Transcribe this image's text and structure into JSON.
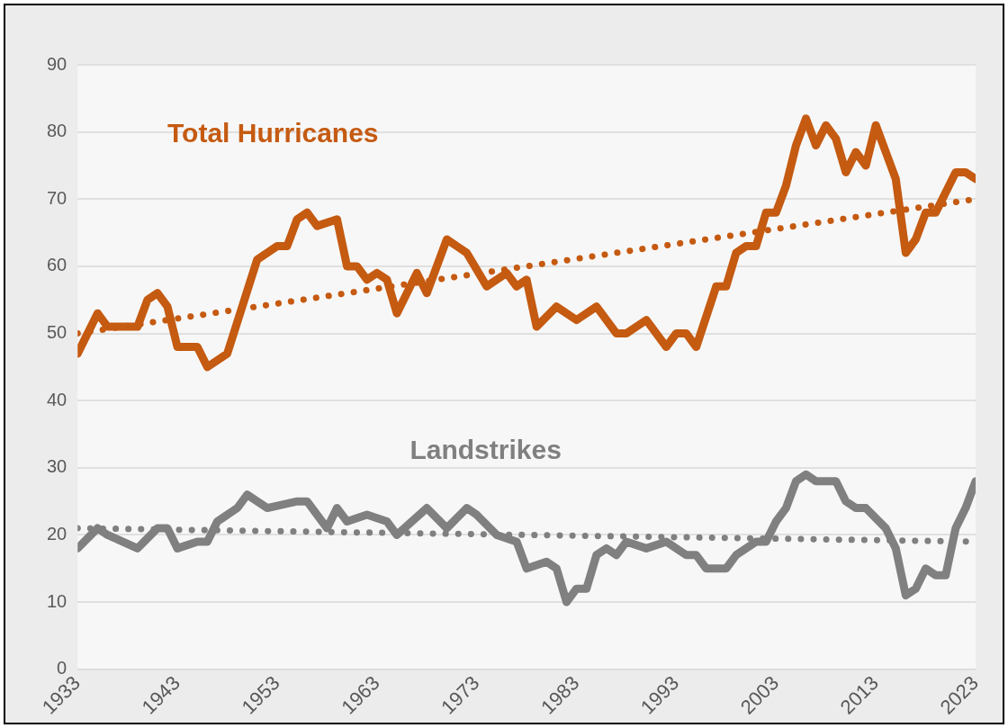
{
  "chart_data": {
    "type": "line",
    "xlim": [
      1933,
      2023
    ],
    "xticks": [
      1933,
      1943,
      1953,
      1963,
      1973,
      1983,
      1993,
      2003,
      2013,
      2023
    ],
    "ylim": [
      0,
      90
    ],
    "yticks": [
      0,
      10,
      20,
      30,
      40,
      50,
      60,
      70,
      80,
      90
    ],
    "grid": "y",
    "legend": false,
    "marker": "none",
    "line_style": "solid",
    "series": [
      {
        "name": "Total Hurricanes",
        "color": "#c55a11",
        "x": [
          1933,
          1935,
          1936,
          1939,
          1940,
          1941,
          1942,
          1943,
          1945,
          1946,
          1948,
          1951,
          1953,
          1954,
          1955,
          1956,
          1957,
          1959,
          1960,
          1961,
          1962,
          1963,
          1964,
          1965,
          1967,
          1968,
          1970,
          1972,
          1974,
          1976,
          1977,
          1978,
          1979,
          1981,
          1983,
          1985,
          1987,
          1988,
          1990,
          1992,
          1993,
          1994,
          1995,
          1997,
          1998,
          1999,
          2000,
          2001,
          2002,
          2003,
          2004,
          2005,
          2006,
          2007,
          2008,
          2009,
          2010,
          2011,
          2012,
          2013,
          2014,
          2015,
          2016,
          2017,
          2018,
          2019,
          2021,
          2022,
          2023
        ],
        "values": [
          47,
          53,
          51,
          51,
          55,
          56,
          54,
          48,
          48,
          45,
          47,
          61,
          63,
          63,
          67,
          68,
          66,
          67,
          60,
          60,
          58,
          59,
          58,
          53,
          59,
          56,
          64,
          62,
          57,
          59,
          57,
          58,
          51,
          54,
          52,
          54,
          50,
          50,
          52,
          48,
          50,
          50,
          48,
          57,
          57,
          62,
          63,
          63,
          68,
          68,
          72,
          78,
          82,
          78,
          81,
          79,
          74,
          77,
          75,
          81,
          77,
          73,
          62,
          64,
          68,
          68,
          74,
          74,
          73
        ]
      },
      {
        "name": "Landstrikes",
        "color": "#808080",
        "x": [
          1933,
          1935,
          1936,
          1939,
          1941,
          1942,
          1943,
          1945,
          1946,
          1947,
          1949,
          1950,
          1952,
          1955,
          1956,
          1958,
          1959,
          1960,
          1962,
          1964,
          1965,
          1968,
          1970,
          1972,
          1973,
          1975,
          1977,
          1978,
          1980,
          1981,
          1982,
          1983,
          1984,
          1985,
          1986,
          1987,
          1988,
          1990,
          1992,
          1994,
          1995,
          1996,
          1998,
          1999,
          2001,
          2002,
          2003,
          2004,
          2005,
          2006,
          2007,
          2009,
          2010,
          2011,
          2012,
          2014,
          2015,
          2016,
          2017,
          2018,
          2019,
          2020,
          2021,
          2022,
          2023
        ],
        "values": [
          18,
          21,
          20,
          18,
          21,
          21,
          18,
          19,
          19,
          22,
          24,
          26,
          24,
          25,
          25,
          21,
          24,
          22,
          23,
          22,
          20,
          24,
          21,
          24,
          23,
          20,
          19,
          15,
          16,
          15,
          10,
          12,
          12,
          17,
          18,
          17,
          19,
          18,
          19,
          17,
          17,
          15,
          15,
          17,
          19,
          19,
          22,
          24,
          28,
          29,
          28,
          28,
          25,
          24,
          24,
          21,
          18,
          11,
          12,
          15,
          14,
          14,
          21,
          24,
          28
        ]
      },
      {
        "type": "line",
        "color": "#c55a11",
        "line_style": "dotted",
        "x": [
          1933,
          2023
        ],
        "values": [
          50,
          70
        ]
      },
      {
        "type": "line",
        "color": "#808080",
        "line_style": "dotted",
        "x": [
          1933,
          2023
        ],
        "values": [
          21,
          19
        ]
      }
    ]
  }
}
